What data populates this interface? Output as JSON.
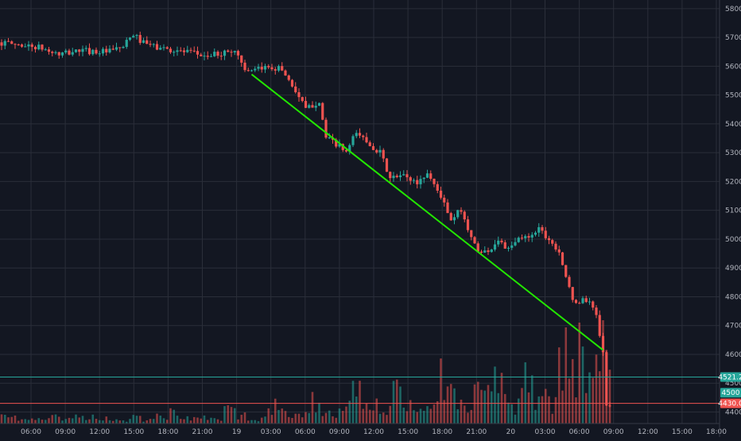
{
  "chart_data": {
    "type": "candlestick",
    "title": "",
    "xlabel": "",
    "ylabel": "",
    "ylim": [
      4360,
      5830
    ],
    "y_ticks": [
      "5800.0",
      "5700.0",
      "5600.0",
      "5500.0",
      "5400.0",
      "5300.0",
      "5200.0",
      "5100.0",
      "5000.0",
      "4900.0",
      "4800.0",
      "4700.0",
      "4600.0",
      "4500.0",
      "4400.0"
    ],
    "x_ticks": [
      "06:00",
      "09:00",
      "12:00",
      "15:00",
      "18:00",
      "21:00",
      "19",
      "03:00",
      "06:00",
      "09:00",
      "12:00",
      "15:00",
      "18:00",
      "21:00",
      "20",
      "03:00",
      "06:00",
      "09:00",
      "12:00",
      "15:00",
      "18:00"
    ],
    "price_badges": [
      {
        "label": "4521.2",
        "value": 4521.2,
        "color": "#26a69a"
      },
      {
        "label": "4500",
        "value": 4500,
        "color": "#26a69a"
      },
      {
        "label": "4430.0",
        "value": 4430.0,
        "color": "#ef5350"
      }
    ],
    "horizontal_lines": [
      {
        "value": 4521.2,
        "color": "#26a69a"
      },
      {
        "value": 4430.0,
        "color": "#ef5350"
      }
    ],
    "trendline": {
      "start": {
        "x": 74,
        "y": 5572
      },
      "end": {
        "x": 178,
        "y": 4615
      },
      "color": "#22e600"
    },
    "path_anchors": [
      [
        0,
        5683
      ],
      [
        6,
        5675
      ],
      [
        12,
        5665
      ],
      [
        18,
        5640
      ],
      [
        24,
        5655
      ],
      [
        28,
        5652
      ],
      [
        33,
        5650
      ],
      [
        37,
        5668
      ],
      [
        40,
        5710
      ],
      [
        43,
        5680
      ],
      [
        47,
        5665
      ],
      [
        55,
        5650
      ],
      [
        62,
        5635
      ],
      [
        70,
        5655
      ],
      [
        74,
        5575
      ],
      [
        80,
        5600
      ],
      [
        84,
        5590
      ],
      [
        88,
        5515
      ],
      [
        91,
        5450
      ],
      [
        95,
        5480
      ],
      [
        97,
        5350
      ],
      [
        100,
        5330
      ],
      [
        103,
        5300
      ],
      [
        106,
        5370
      ],
      [
        109,
        5340
      ],
      [
        113,
        5300
      ],
      [
        116,
        5210
      ],
      [
        120,
        5220
      ],
      [
        124,
        5195
      ],
      [
        127,
        5230
      ],
      [
        131,
        5150
      ],
      [
        134,
        5060
      ],
      [
        137,
        5105
      ],
      [
        140,
        5000
      ],
      [
        143,
        4950
      ],
      [
        146,
        4970
      ],
      [
        148,
        5000
      ],
      [
        151,
        4960
      ],
      [
        154,
        5000
      ],
      [
        157,
        5010
      ],
      [
        160,
        5040
      ],
      [
        163,
        5000
      ],
      [
        166,
        4960
      ],
      [
        168,
        4870
      ],
      [
        170,
        4780
      ],
      [
        174,
        4790
      ],
      [
        177,
        4740
      ],
      [
        179,
        4600
      ],
      [
        180,
        4420
      ]
    ],
    "volume_pattern": [
      8,
      5,
      7,
      10,
      6,
      9,
      12,
      7,
      5,
      8,
      6,
      11,
      14,
      9,
      7,
      6,
      18,
      10,
      8,
      25,
      15,
      12,
      30,
      20,
      16,
      38,
      22,
      18,
      45,
      28,
      20,
      60,
      35,
      25,
      40,
      55,
      30,
      70,
      45,
      35,
      90,
      60,
      50,
      110
    ],
    "candle_count": 181
  }
}
